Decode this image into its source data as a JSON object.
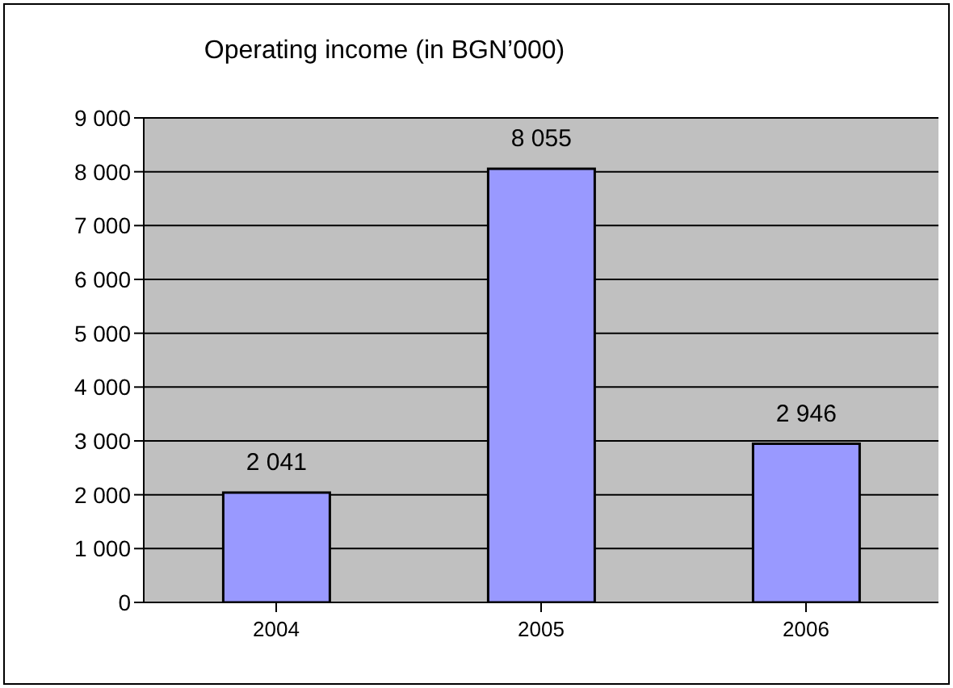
{
  "chart_data": {
    "type": "bar",
    "title": "Operating income (in BGN’000)",
    "categories": [
      "2004",
      "2005",
      "2006"
    ],
    "values": [
      2041,
      8055,
      2946
    ],
    "value_labels": [
      "2 041",
      "8 055",
      "2 946"
    ],
    "color": "#9999ff",
    "ylim": [
      0,
      9000
    ],
    "yticks": [
      {
        "value": 0,
        "label": "0"
      },
      {
        "value": 1000,
        "label": "1 000"
      },
      {
        "value": 2000,
        "label": "2 000"
      },
      {
        "value": 3000,
        "label": "3 000"
      },
      {
        "value": 4000,
        "label": "4 000"
      },
      {
        "value": 5000,
        "label": "5 000"
      },
      {
        "value": 6000,
        "label": "6 000"
      },
      {
        "value": 7000,
        "label": "7 000"
      },
      {
        "value": 8000,
        "label": "8 000"
      },
      {
        "value": 9000,
        "label": "9 000"
      }
    ],
    "grid": "y"
  }
}
